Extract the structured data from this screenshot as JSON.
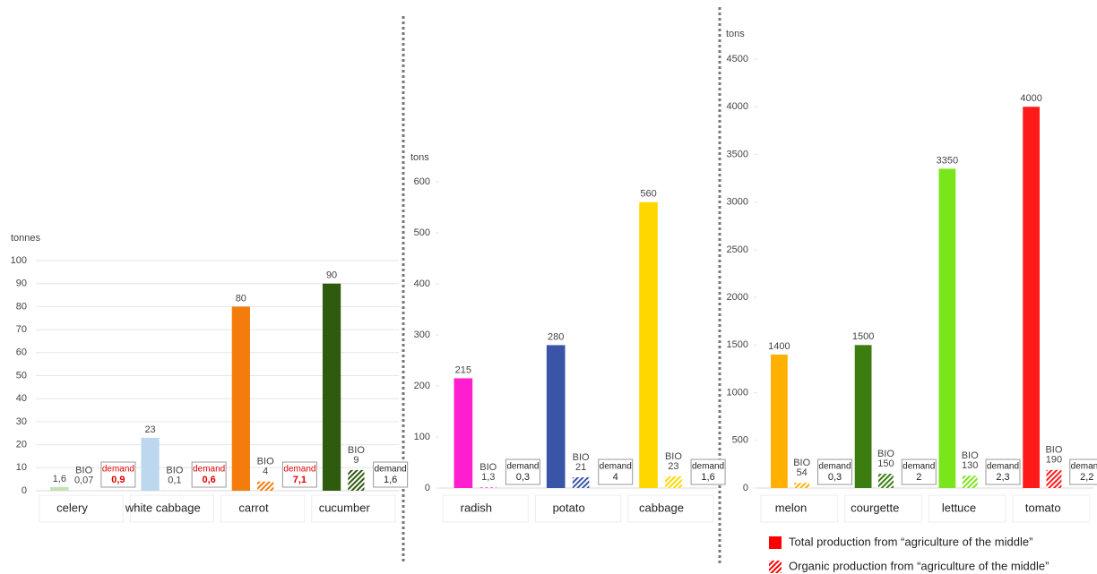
{
  "chart_data": [
    {
      "type": "bar",
      "y_label": "tonnes",
      "ylim": [
        0,
        100
      ],
      "yticks": [
        0,
        10,
        20,
        30,
        40,
        50,
        60,
        70,
        80,
        90,
        100
      ],
      "grid": true,
      "categories": [
        "celery",
        "white cabbage",
        "carrot",
        "cucumber"
      ],
      "series": [
        {
          "values": [
            1.6,
            23,
            80,
            90
          ],
          "value_labels": [
            "1,6",
            "23",
            "80",
            "90"
          ],
          "colors": [
            "#c5e0b4",
            "#bdd7ee",
            "#f47c0c",
            "#2e5b0e"
          ]
        },
        {
          "values": [
            0.07,
            0.1,
            4,
            9
          ],
          "value_labels": [
            "0,07",
            "0,1",
            "4",
            "9"
          ],
          "pattern": "hatched",
          "prefix": "BIO"
        }
      ],
      "demand": {
        "label": "demand",
        "values": [
          0.9,
          0.6,
          7.1,
          1.6
        ],
        "value_labels": [
          "0,9",
          "0,6",
          "7,1",
          "1,6"
        ],
        "colors": [
          "#e00000",
          "#e00000",
          "#e00000",
          "#222222"
        ]
      }
    },
    {
      "type": "bar",
      "y_label": "tons",
      "ylim": [
        0,
        600
      ],
      "yticks": [
        0,
        100,
        200,
        300,
        400,
        500,
        600
      ],
      "grid": false,
      "categories": [
        "radish",
        "potato",
        "cabbage"
      ],
      "series": [
        {
          "values": [
            215,
            280,
            560
          ],
          "value_labels": [
            "215",
            "280",
            "560"
          ],
          "colors": [
            "#ff1ecf",
            "#3a55a8",
            "#ffd700"
          ]
        },
        {
          "values": [
            1.3,
            21,
            23
          ],
          "value_labels": [
            "1,3",
            "21",
            "23"
          ],
          "pattern": "hatched",
          "prefix": "BIO"
        }
      ],
      "demand": {
        "label": "demand",
        "values": [
          0.3,
          4,
          1.6
        ],
        "value_labels": [
          "0,3",
          "4",
          "1,6"
        ],
        "colors": [
          "#222222",
          "#222222",
          "#222222"
        ]
      }
    },
    {
      "type": "bar",
      "y_label": "tons",
      "ylim": [
        0,
        4500
      ],
      "yticks": [
        0,
        500,
        1000,
        1500,
        2000,
        2500,
        3000,
        3500,
        4000,
        4500
      ],
      "grid": false,
      "categories": [
        "melon",
        "courgette",
        "lettuce",
        "tomato"
      ],
      "series": [
        {
          "name": "Total production from “agriculture of the middle”",
          "values": [
            1400,
            1500,
            3350,
            4000
          ],
          "value_labels": [
            "1400",
            "1500",
            "3350",
            "4000"
          ],
          "colors": [
            "#ffb000",
            "#3c7d10",
            "#7ae51a",
            "#ff1a1a"
          ],
          "legend_color": "#ff0000"
        },
        {
          "name": "Organic production from “agriculture of the middle”",
          "values": [
            54,
            150,
            130,
            190
          ],
          "value_labels": [
            "54",
            "150",
            "130",
            "190"
          ],
          "pattern": "hatched",
          "prefix": "BIO"
        }
      ],
      "demand": {
        "label": "demand",
        "values": [
          0.3,
          2,
          2.3,
          2.2
        ],
        "value_labels": [
          "0,3",
          "2",
          "2,3",
          "2,2"
        ],
        "colors": [
          "#222222",
          "#222222",
          "#222222",
          "#222222"
        ]
      }
    }
  ]
}
